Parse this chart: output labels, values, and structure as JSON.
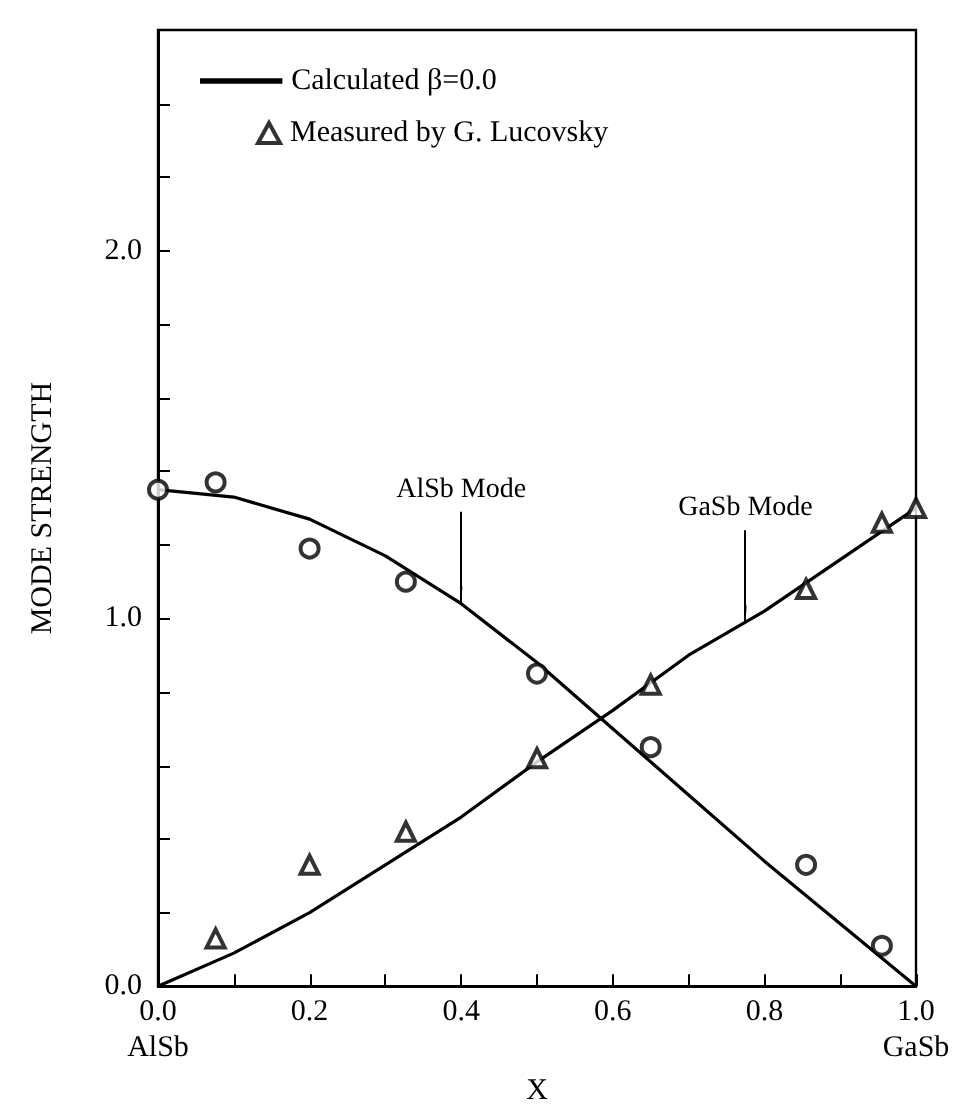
{
  "chart_data": {
    "type": "line",
    "xlabel": "X",
    "ylabel": "MODE STRENGTH",
    "xlim": [
      0,
      1
    ],
    "ylim": [
      0,
      2.6
    ],
    "xticks": [
      {
        "value": 0,
        "label": "0.0\nAlSb"
      },
      {
        "value": 0.1,
        "label": null
      },
      {
        "value": 0.2,
        "label": "0.2"
      },
      {
        "value": 0.3,
        "label": null
      },
      {
        "value": 0.4,
        "label": "0.4"
      },
      {
        "value": 0.5,
        "label": null
      },
      {
        "value": 0.6,
        "label": "0.6"
      },
      {
        "value": 0.7,
        "label": null
      },
      {
        "value": 0.8,
        "label": "0.8"
      },
      {
        "value": 0.9,
        "label": null
      },
      {
        "value": 1,
        "label": "1.0\nGaSb"
      }
    ],
    "yticks": [
      {
        "value": 0,
        "label": "0.0"
      },
      {
        "value": 0.2,
        "label": null
      },
      {
        "value": 0.4,
        "label": null
      },
      {
        "value": 0.6,
        "label": null
      },
      {
        "value": 0.8,
        "label": null
      },
      {
        "value": 1,
        "label": "1.0"
      },
      {
        "value": 1.2,
        "label": null
      },
      {
        "value": 1.4,
        "label": null
      },
      {
        "value": 1.6,
        "label": null
      },
      {
        "value": 1.8,
        "label": null
      },
      {
        "value": 2,
        "label": "2.0"
      },
      {
        "value": 2.2,
        "label": null
      },
      {
        "value": 2.4,
        "label": null
      }
    ],
    "grid": false,
    "legend": "top left",
    "series": [
      {
        "name": "Calculated β=0.0",
        "color": "#000000",
        "marker": "none",
        "line_style": "solid",
        "x": [
          0,
          0.1,
          0.2,
          0.3,
          0.4,
          0.5,
          0.6,
          0.7,
          0.8,
          0.9,
          1
        ],
        "values": [
          1.35,
          1.33,
          1.27,
          1.17,
          1.04,
          0.88,
          0.7,
          0.52,
          0.34,
          0.17,
          0
        ]
      },
      {
        "color": "#000000",
        "marker": "none",
        "line_style": "solid",
        "x": [
          0,
          0.1,
          0.2,
          0.3,
          0.4,
          0.5,
          0.6,
          0.7,
          0.775,
          0.8,
          0.9,
          1
        ],
        "values": [
          0,
          0.09,
          0.2,
          0.33,
          0.46,
          0.61,
          0.75,
          0.9,
          0.99,
          1.02,
          1.16,
          1.3
        ]
      },
      {
        "type": "scatter",
        "color": "#000000",
        "marker": "circle",
        "x": [
          0,
          0.076,
          0.2,
          0.327,
          0.5,
          0.65,
          0.855,
          0.955
        ],
        "values": [
          1.35,
          1.37,
          1.19,
          1.1,
          0.85,
          0.65,
          0.33,
          0.11
        ]
      },
      {
        "name": "Measured by G. Lucovsky",
        "type": "scatter",
        "color": "#000000",
        "marker": "triangle",
        "x": [
          0.076,
          0.2,
          0.327,
          0.5,
          0.65,
          0.855,
          0.955,
          1
        ],
        "values": [
          0.13,
          0.33,
          0.42,
          0.62,
          0.82,
          1.08,
          1.26,
          1.3
        ]
      }
    ],
    "annotations": [
      {
        "text": "AlSb Mode",
        "x": 0.4,
        "y": 1.04
      },
      {
        "text": "GaSb Mode",
        "x": 0.775,
        "y": 0.99
      }
    ]
  }
}
